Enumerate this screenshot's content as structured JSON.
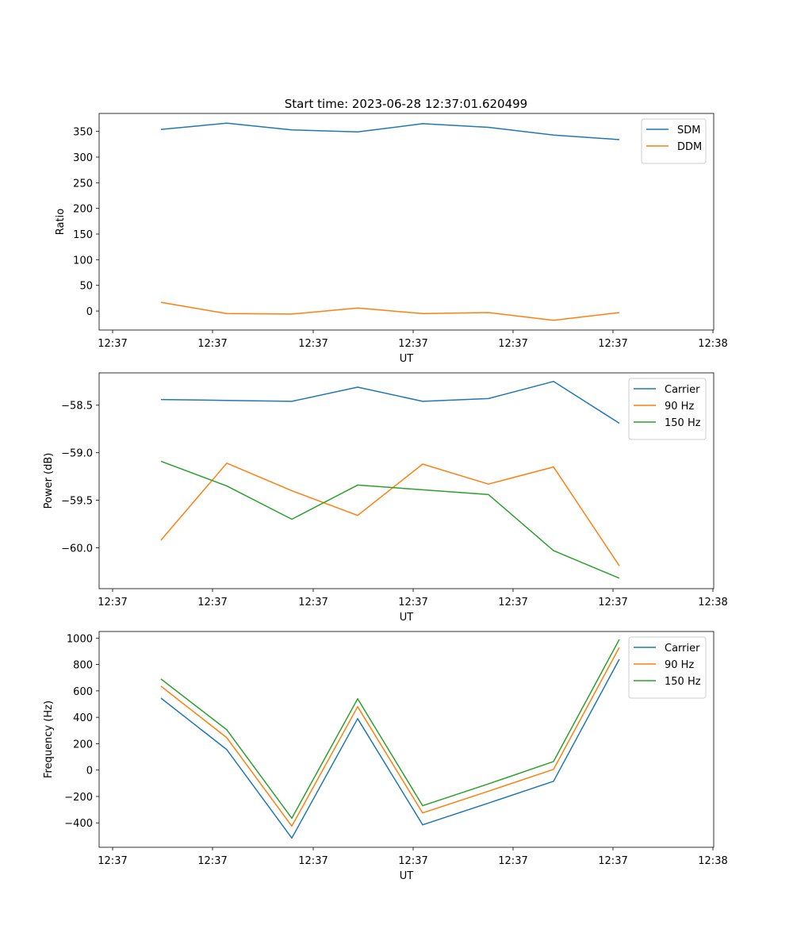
{
  "figure": {
    "title": "Start time: 2023-06-28 12:37:01.620499"
  },
  "chart_data": [
    {
      "type": "line",
      "xlabel": "UT",
      "ylabel": "Ratio",
      "x_tick_labels": [
        "12:37",
        "12:37",
        "12:37",
        "12:37",
        "12:37",
        "12:37",
        "12:38"
      ],
      "y_ticks": [
        0,
        50,
        100,
        150,
        200,
        250,
        300,
        350
      ],
      "ylim": [
        -37,
        385
      ],
      "grid": false,
      "legend_position": "upper right",
      "series": [
        {
          "name": "SDM",
          "color": "#1f77b4",
          "values": [
            354,
            366,
            353,
            349,
            365,
            358,
            343,
            334
          ]
        },
        {
          "name": "DDM",
          "color": "#ff7f0e",
          "values": [
            17,
            -5,
            -6,
            6,
            -5,
            -3,
            -18,
            -3
          ]
        }
      ]
    },
    {
      "type": "line",
      "xlabel": "UT",
      "ylabel": "Power (dB)",
      "x_tick_labels": [
        "12:37",
        "12:37",
        "12:37",
        "12:37",
        "12:37",
        "12:37",
        "12:38"
      ],
      "y_ticks": [
        -60.0,
        -59.5,
        -59.0,
        -58.5
      ],
      "y_tick_labels": [
        "−60.0",
        "−59.5",
        "−59.0",
        "−58.5"
      ],
      "ylim": [
        -60.43,
        -58.16
      ],
      "grid": false,
      "legend_position": "upper right",
      "series": [
        {
          "name": "Carrier",
          "color": "#1f77b4",
          "values": [
            -58.44,
            -58.45,
            -58.46,
            -58.31,
            -58.46,
            -58.43,
            -58.25,
            -58.69
          ]
        },
        {
          "name": "90 Hz",
          "color": "#ff7f0e",
          "values": [
            -59.92,
            -59.11,
            -59.4,
            -59.66,
            -59.12,
            -59.33,
            -59.15,
            -60.19
          ]
        },
        {
          "name": "150 Hz",
          "color": "#2ca02c",
          "values": [
            -59.09,
            -59.35,
            -59.7,
            -59.34,
            -59.39,
            -59.44,
            -60.03,
            -60.32
          ]
        }
      ]
    },
    {
      "type": "line",
      "xlabel": "UT",
      "ylabel": "Frequency (Hz)",
      "x_tick_labels": [
        "12:37",
        "12:37",
        "12:37",
        "12:37",
        "12:37",
        "12:37",
        "12:38"
      ],
      "y_ticks": [
        -400,
        -200,
        0,
        200,
        400,
        600,
        800,
        1000
      ],
      "y_tick_labels": [
        "−400",
        "−200",
        "0",
        "200",
        "400",
        "600",
        "800",
        "1000"
      ],
      "ylim": [
        -585,
        1050
      ],
      "grid": false,
      "legend_position": "upper right",
      "series": [
        {
          "name": "Carrier",
          "color": "#1f77b4",
          "values": [
            545,
            155,
            -515,
            390,
            -415,
            -250,
            -85,
            840
          ]
        },
        {
          "name": "90 Hz",
          "color": "#ff7f0e",
          "values": [
            635,
            245,
            -425,
            480,
            -325,
            -160,
            5,
            930
          ]
        },
        {
          "name": "150 Hz",
          "color": "#2ca02c",
          "values": [
            690,
            305,
            -365,
            540,
            -270,
            -105,
            65,
            990
          ]
        }
      ]
    }
  ]
}
